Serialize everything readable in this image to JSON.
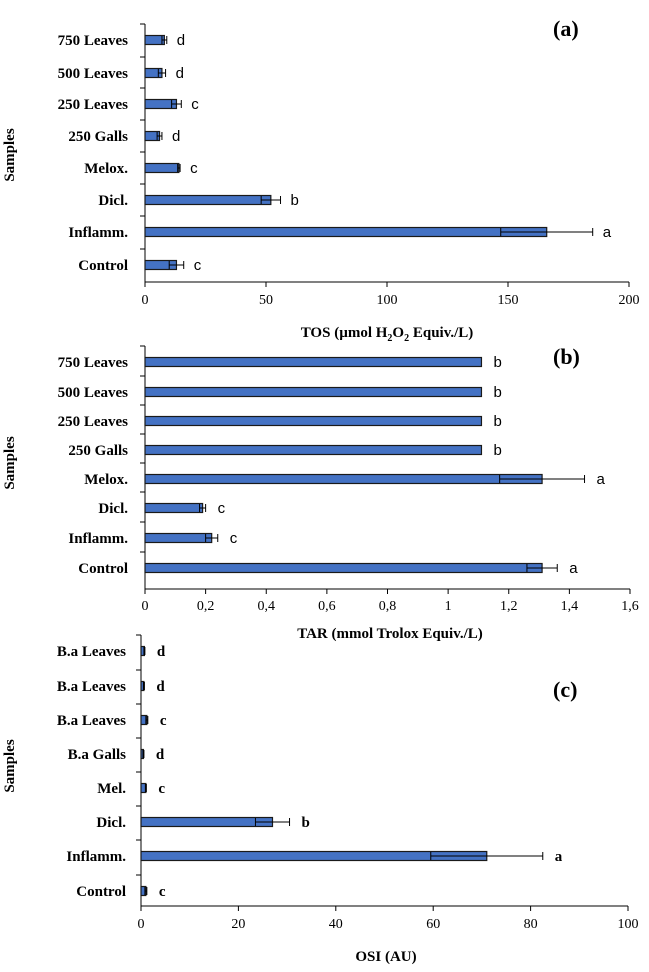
{
  "colors": {
    "bar": "#4472C4",
    "bar_edge": "#1a1a1a",
    "axis": "#000000"
  },
  "chart_data": [
    {
      "type": "bar",
      "orientation": "horizontal",
      "panel": "(a)",
      "ylabel": "Samples",
      "xlabel": "TOS  (µmol H₂O₂ Equiv./L)",
      "xlabel_parts": {
        "pre": "TOS  (µmol H",
        "sub1": "2",
        "mid": "O",
        "sub2": "2",
        "post": " Equiv./L)"
      },
      "xlim": [
        0,
        200
      ],
      "xticks": [
        "0",
        "50",
        "100",
        "150",
        "200"
      ],
      "categories": [
        "750 Leaves",
        "500 Leaves",
        "250 Leaves",
        "250 Galls",
        "Melox.",
        "Dicl.",
        "Inflamm.",
        "Control"
      ],
      "values": [
        8,
        7,
        13,
        6,
        14,
        52,
        166,
        13
      ],
      "errors": [
        1,
        1.5,
        2,
        1,
        0.5,
        4,
        19,
        3
      ],
      "sig": [
        "d",
        "d",
        "c",
        "d",
        "c",
        "b",
        "a",
        "c"
      ]
    },
    {
      "type": "bar",
      "orientation": "horizontal",
      "panel": "(b)",
      "ylabel": "Samples",
      "xlabel": "TAR  (mmol Trolox Equiv./L)",
      "xlim": [
        0,
        1.6
      ],
      "xticks": [
        "0",
        "0,2",
        "0,4",
        "0,6",
        "0,8",
        "1",
        "1,2",
        "1,4",
        "1,6"
      ],
      "categories": [
        "750 Leaves",
        "500 Leaves",
        "250 Leaves",
        "250 Galls",
        "Melox.",
        "Dicl.",
        "Inflamm.",
        "Control"
      ],
      "values": [
        1.11,
        1.11,
        1.11,
        1.11,
        1.31,
        0.19,
        0.22,
        1.31
      ],
      "errors": [
        0,
        0,
        0,
        0,
        0.14,
        0.01,
        0.02,
        0.05
      ],
      "sig": [
        "b",
        "b",
        "b",
        "b",
        "a",
        "c",
        "c",
        "a"
      ]
    },
    {
      "type": "bar",
      "orientation": "horizontal",
      "panel": "(c)",
      "ylabel": "Samples",
      "xlabel": "OSI (AU)",
      "xlim": [
        0,
        100
      ],
      "xticks": [
        "0",
        "20",
        "40",
        "60",
        "80",
        "100"
      ],
      "categories": [
        "B.a Leaves",
        "B.a Leaves",
        "B.a Leaves",
        "B.a Galls",
        "Mel.",
        "Dicl.",
        "Inflamm.",
        "Control"
      ],
      "values": [
        0.7,
        0.6,
        1.2,
        0.5,
        1.0,
        27,
        71,
        1.0
      ],
      "errors": [
        0.1,
        0.1,
        0.2,
        0.1,
        0.1,
        3.5,
        11.5,
        0.2
      ],
      "sig": [
        "d",
        "d",
        "c",
        "d",
        "c",
        "b",
        "a",
        "c"
      ]
    }
  ]
}
